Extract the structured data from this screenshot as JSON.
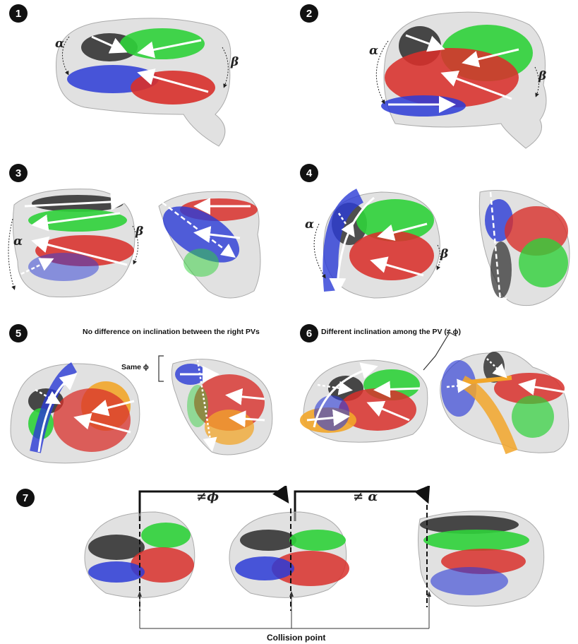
{
  "panels": [
    {
      "number": "1"
    },
    {
      "number": "2"
    },
    {
      "number": "3"
    },
    {
      "number": "4"
    },
    {
      "number": "5",
      "caption": "No difference on inclination between the right PVs",
      "label": "Same ϕ"
    },
    {
      "number": "6",
      "caption": "Different inclination among the PV (≠ ϕ)"
    },
    {
      "number": "7",
      "label_phi": "≠ϕ",
      "label_alpha": "≠ α",
      "caption": "Collision point"
    }
  ],
  "angle_labels": {
    "alpha": "α",
    "beta": "β"
  },
  "colors": {
    "green": "#2fd13a",
    "red": "#d8302b",
    "blue": "#2b3bd6",
    "black": "#2a2a2a",
    "orange": "#f2a62a",
    "shell": "#c8c8c8"
  }
}
